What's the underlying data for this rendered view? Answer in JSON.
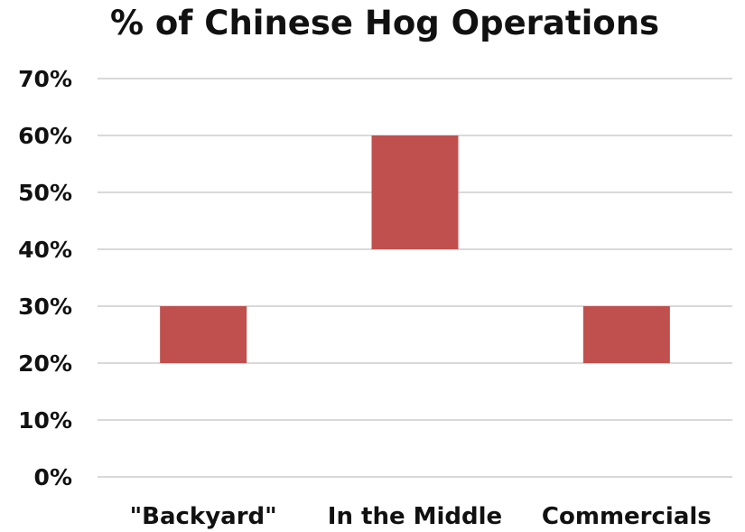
{
  "chart_data": {
    "type": "bar",
    "subtype": "floating-range",
    "title": "% of Chinese Hog Operations",
    "categories": [
      "\"Backyard\"",
      "In the Middle",
      "Commercials"
    ],
    "ranges": [
      {
        "low": 20,
        "high": 30
      },
      {
        "low": 40,
        "high": 60
      },
      {
        "low": 20,
        "high": 30
      }
    ],
    "ylim": [
      0,
      70
    ],
    "yticks": [
      0,
      10,
      20,
      30,
      40,
      50,
      60,
      70
    ],
    "ytick_labels": [
      "0%",
      "10%",
      "20%",
      "30%",
      "40%",
      "50%",
      "60%",
      "70%"
    ],
    "grid": true,
    "legend": "none",
    "bar_color": "#c0504d"
  }
}
